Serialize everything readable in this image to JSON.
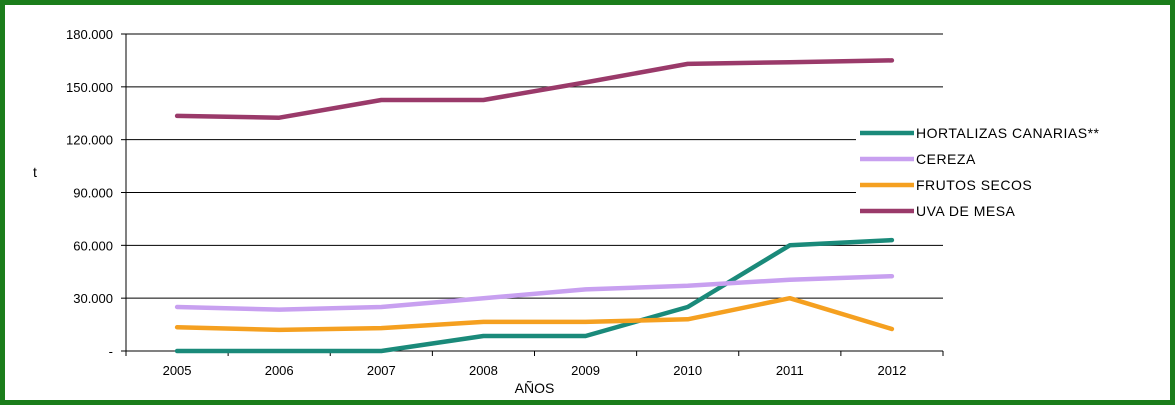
{
  "chart_data": {
    "type": "line",
    "title": "",
    "xlabel": "AÑOS",
    "ylabel": "t",
    "categories": [
      "2005",
      "2006",
      "2007",
      "2008",
      "2009",
      "2010",
      "2011",
      "2012"
    ],
    "y_ticks": [
      {
        "value": 0,
        "label": "-"
      },
      {
        "value": 30000,
        "label": "30.000"
      },
      {
        "value": 60000,
        "label": "60.000"
      },
      {
        "value": 90000,
        "label": "90.000"
      },
      {
        "value": 120000,
        "label": "120.000"
      },
      {
        "value": 150000,
        "label": "150.000"
      },
      {
        "value": 180000,
        "label": "180.000"
      }
    ],
    "ylim": [
      0,
      180000
    ],
    "grid": true,
    "legend_position": "right",
    "series": [
      {
        "name": "HORTALIZAS CANARIAS**",
        "color": "#1a8a7a",
        "values": [
          0,
          0,
          0,
          8500,
          8500,
          25000,
          60000,
          63000
        ]
      },
      {
        "name": "CEREZA",
        "color": "#c8a0f0",
        "values": [
          25000,
          23500,
          25000,
          30000,
          35000,
          37000,
          40500,
          42500
        ]
      },
      {
        "name": "FRUTOS SECOS",
        "color": "#f5a020",
        "values": [
          13500,
          12000,
          13000,
          16500,
          16500,
          18000,
          30000,
          12500
        ]
      },
      {
        "name": "UVA DE MESA",
        "color": "#9a3a6a",
        "values": [
          133500,
          132500,
          142500,
          142500,
          152500,
          163000,
          164000,
          165000
        ]
      }
    ]
  }
}
